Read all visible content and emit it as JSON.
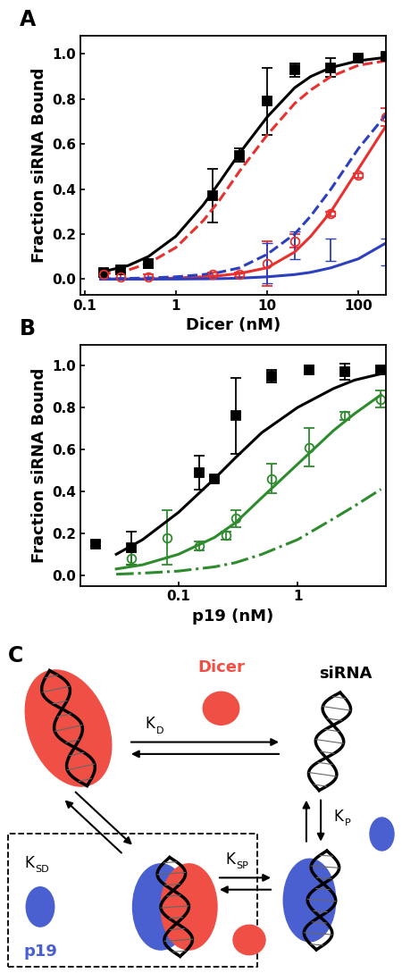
{
  "chart_data": [
    {
      "type": "scatter",
      "title": "A",
      "x_label": "Dicer (nM)",
      "y_label": "Fraction siRNA Bound",
      "log": "x",
      "xlim": [
        0.09,
        200
      ],
      "xticks": [
        0.1,
        1,
        10,
        100
      ],
      "ylim": [
        -0.07,
        1.08
      ],
      "yticks": [
        0.0,
        0.2,
        0.4,
        0.6,
        0.8,
        1.0
      ],
      "series": [
        {
          "type": "scatter",
          "color": "#000000",
          "marker": "filled_square",
          "x": [
            0.16,
            0.25,
            0.5,
            2.5,
            5,
            10,
            20,
            50,
            100,
            200
          ],
          "values": [
            0.03,
            0.04,
            0.07,
            0.37,
            0.55,
            0.79,
            0.93,
            0.94,
            0.98,
            0.99
          ],
          "errors": [
            0.01,
            0.01,
            0.02,
            0.12,
            0.03,
            0.15,
            0.03,
            0.04,
            0.01,
            0.01
          ]
        },
        {
          "type": "scatter",
          "color": "#e8312f",
          "marker": "open_circle",
          "x": [
            0.16,
            0.25,
            0.5,
            2.5,
            5,
            10,
            20,
            50,
            100,
            200
          ],
          "values": [
            0.02,
            0.01,
            0.01,
            0.02,
            0.02,
            0.07,
            0.17,
            0.29,
            0.46,
            0.72
          ],
          "errors": [
            0.01,
            0.01,
            0.01,
            0.01,
            0.01,
            0.1,
            0.03,
            0.01,
            0.01,
            0.04
          ]
        },
        {
          "type": "scatter",
          "color": "#2b3fbf",
          "marker": "none",
          "x": [
            10,
            20,
            50,
            200
          ],
          "values": [
            0.07,
            0.15,
            0.13,
            0.12
          ],
          "errors": [
            0.09,
            0.06,
            0.05,
            0.06
          ]
        },
        {
          "type": "line",
          "color": "#000000",
          "line_style": "solid",
          "x": [
            0.15,
            0.3,
            0.5,
            1,
            2,
            3,
            5,
            10,
            20,
            30,
            50,
            100,
            200
          ],
          "values": [
            0.03,
            0.06,
            0.1,
            0.19,
            0.33,
            0.43,
            0.56,
            0.72,
            0.85,
            0.9,
            0.94,
            0.97,
            0.985
          ]
        },
        {
          "type": "line",
          "color": "#e8312f",
          "line_style": "dashed",
          "x": [
            0.15,
            0.3,
            0.5,
            1,
            2,
            3,
            5,
            10,
            20,
            30,
            50,
            100,
            200
          ],
          "values": [
            0.02,
            0.04,
            0.07,
            0.14,
            0.26,
            0.35,
            0.48,
            0.64,
            0.78,
            0.84,
            0.9,
            0.95,
            0.97
          ]
        },
        {
          "type": "line",
          "color": "#e8312f",
          "line_style": "solid",
          "x": [
            0.15,
            0.3,
            0.5,
            1,
            2,
            3,
            5,
            10,
            20,
            30,
            50,
            100,
            200
          ],
          "values": [
            0.0,
            0.0,
            0.0,
            0.005,
            0.01,
            0.015,
            0.025,
            0.05,
            0.12,
            0.19,
            0.3,
            0.49,
            0.68
          ]
        },
        {
          "type": "line",
          "color": "#2b3fbf",
          "line_style": "dashed",
          "x": [
            0.15,
            0.3,
            0.5,
            1,
            2,
            3,
            5,
            10,
            20,
            30,
            50,
            100,
            200
          ],
          "values": [
            0.0,
            0.003,
            0.005,
            0.01,
            0.02,
            0.03,
            0.05,
            0.11,
            0.2,
            0.28,
            0.4,
            0.58,
            0.73
          ]
        },
        {
          "type": "line",
          "color": "#2b3fbf",
          "line_style": "solid",
          "x": [
            0.15,
            0.3,
            0.5,
            1,
            2,
            3,
            5,
            10,
            20,
            30,
            50,
            100,
            200
          ],
          "values": [
            0.0,
            0.0,
            0.0,
            0.0,
            0.001,
            0.002,
            0.004,
            0.01,
            0.02,
            0.03,
            0.05,
            0.09,
            0.16
          ]
        }
      ]
    },
    {
      "type": "scatter",
      "title": "B",
      "x_label": "p19 (nM)",
      "y_label": "Fraction siRNA Bound",
      "log": "x",
      "xlim": [
        0.015,
        5.5
      ],
      "xticks": [
        0.1,
        1
      ],
      "ylim": [
        -0.05,
        1.1
      ],
      "yticks": [
        0.0,
        0.2,
        0.4,
        0.6,
        0.8,
        1.0
      ],
      "series": [
        {
          "type": "scatter",
          "color": "#000000",
          "marker": "filled_square",
          "x": [
            0.02,
            0.04,
            0.15,
            0.2,
            0.3,
            0.6,
            1.25,
            2.5,
            5
          ],
          "values": [
            0.15,
            0.13,
            0.49,
            0.46,
            0.76,
            0.95,
            0.98,
            0.97,
            0.98
          ],
          "errors": [
            0.01,
            0.08,
            0.08,
            0.01,
            0.18,
            0.03,
            0.02,
            0.04,
            0.01
          ]
        },
        {
          "type": "scatter",
          "color": "#2e8b2e",
          "marker": "open_circle",
          "x": [
            0.04,
            0.08,
            0.15,
            0.25,
            0.3,
            0.6,
            1.25,
            2.5,
            5
          ],
          "values": [
            0.08,
            0.18,
            0.14,
            0.19,
            0.27,
            0.46,
            0.61,
            0.76,
            0.84
          ],
          "errors": [
            0.03,
            0.13,
            0.02,
            0.02,
            0.04,
            0.07,
            0.09,
            0.02,
            0.04
          ]
        },
        {
          "type": "line",
          "color": "#000000",
          "line_style": "solid",
          "x": [
            0.03,
            0.05,
            0.1,
            0.2,
            0.3,
            0.5,
            1,
            2,
            3,
            5
          ],
          "values": [
            0.1,
            0.17,
            0.3,
            0.46,
            0.56,
            0.68,
            0.8,
            0.89,
            0.93,
            0.96
          ]
        },
        {
          "type": "line",
          "color": "#2e8b2e",
          "line_style": "solid",
          "x": [
            0.03,
            0.05,
            0.1,
            0.2,
            0.3,
            0.5,
            1,
            2,
            3,
            5
          ],
          "values": [
            0.03,
            0.05,
            0.1,
            0.18,
            0.25,
            0.37,
            0.53,
            0.69,
            0.77,
            0.86
          ]
        },
        {
          "type": "line",
          "color": "#2e8b2e",
          "line_style": "dashdot",
          "x": [
            0.03,
            0.05,
            0.1,
            0.2,
            0.3,
            0.5,
            1,
            2,
            3,
            5
          ],
          "values": [
            0.005,
            0.01,
            0.02,
            0.04,
            0.06,
            0.1,
            0.17,
            0.27,
            0.33,
            0.41
          ]
        }
      ]
    }
  ],
  "diagram": {
    "title": "C",
    "labels": {
      "dicer": "Dicer",
      "sirna": "siRNA",
      "p19": "p19"
    },
    "constants": {
      "dicer_binding": {
        "symbol": "K",
        "subscript": "D"
      },
      "p19_to_dicer_complex": {
        "symbol": "K",
        "subscript": "SD"
      },
      "exchange": {
        "symbol": "K",
        "subscript": "SP"
      },
      "p19_binding": {
        "symbol": "K",
        "subscript": "P"
      }
    }
  }
}
